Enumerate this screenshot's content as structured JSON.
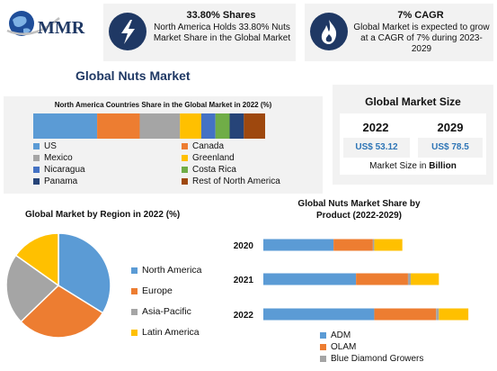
{
  "logo": {
    "text": "MMR"
  },
  "stat1": {
    "headline": "33.80% Shares",
    "body": "North America Holds 33.80% Nuts Market Share in the Global Market",
    "icon": "lightning-icon"
  },
  "stat2": {
    "headline": "7% CAGR",
    "body": "Global Market is expected to grow at a CAGR of 7% during 2023-2029",
    "icon": "flame-icon"
  },
  "title": "Global Nuts Market",
  "market_size": {
    "title": "Global Market Size",
    "years": [
      "2022",
      "2029"
    ],
    "values": [
      "US$ 53.12",
      "US$ 78.5"
    ],
    "note_prefix": "Market Size in ",
    "note_unit": "Billion"
  },
  "colors": {
    "us": "#5b9bd5",
    "canada": "#ed7d31",
    "mexico": "#a5a5a5",
    "greenland": "#ffc000",
    "nicaragua": "#4472c4",
    "costa_rica": "#70ad47",
    "panama": "#264478",
    "rest": "#9e480e",
    "accent_navy": "#1f3864",
    "accent_blue": "#2e75b6"
  },
  "chart_data": [
    {
      "type": "bar",
      "orientation": "stacked-horizontal",
      "title": "North America Countries Share in the Global Market in 2022 (%)",
      "categories": [
        "2022"
      ],
      "series": [
        {
          "name": "US",
          "values": [
            27
          ]
        },
        {
          "name": "Canada",
          "values": [
            18
          ]
        },
        {
          "name": "Mexico",
          "values": [
            17
          ]
        },
        {
          "name": "Greenland",
          "values": [
            9
          ]
        },
        {
          "name": "Nicaragua",
          "values": [
            6
          ]
        },
        {
          "name": "Costa Rica",
          "values": [
            6
          ]
        },
        {
          "name": "Panama",
          "values": [
            6
          ]
        },
        {
          "name": "Rest of North America",
          "values": [
            9
          ]
        }
      ],
      "legend_position": "bottom"
    },
    {
      "type": "pie",
      "title": "Global Market by Region in 2022 (%)",
      "labels": [
        "North America",
        "Europe",
        "Asia-Pacific",
        "Latin America"
      ],
      "values": [
        33.8,
        29,
        22,
        15.2
      ],
      "legend_position": "right"
    },
    {
      "type": "bar",
      "orientation": "stacked-horizontal",
      "title": "Global Nuts Market Share by Product (2022-2029)",
      "categories": [
        "2020",
        "2021",
        "2022"
      ],
      "series": [
        {
          "name": "ADM",
          "values": [
            50,
            66,
            79
          ]
        },
        {
          "name": "OLAM",
          "values": [
            28,
            37,
            44
          ]
        },
        {
          "name": "Blue Diamond Growers",
          "values": [
            1,
            2,
            2
          ]
        },
        {
          "name": "",
          "values": [
            20,
            20,
            21
          ]
        }
      ],
      "xlim": [
        0,
        160
      ],
      "legend_position": "bottom"
    }
  ]
}
